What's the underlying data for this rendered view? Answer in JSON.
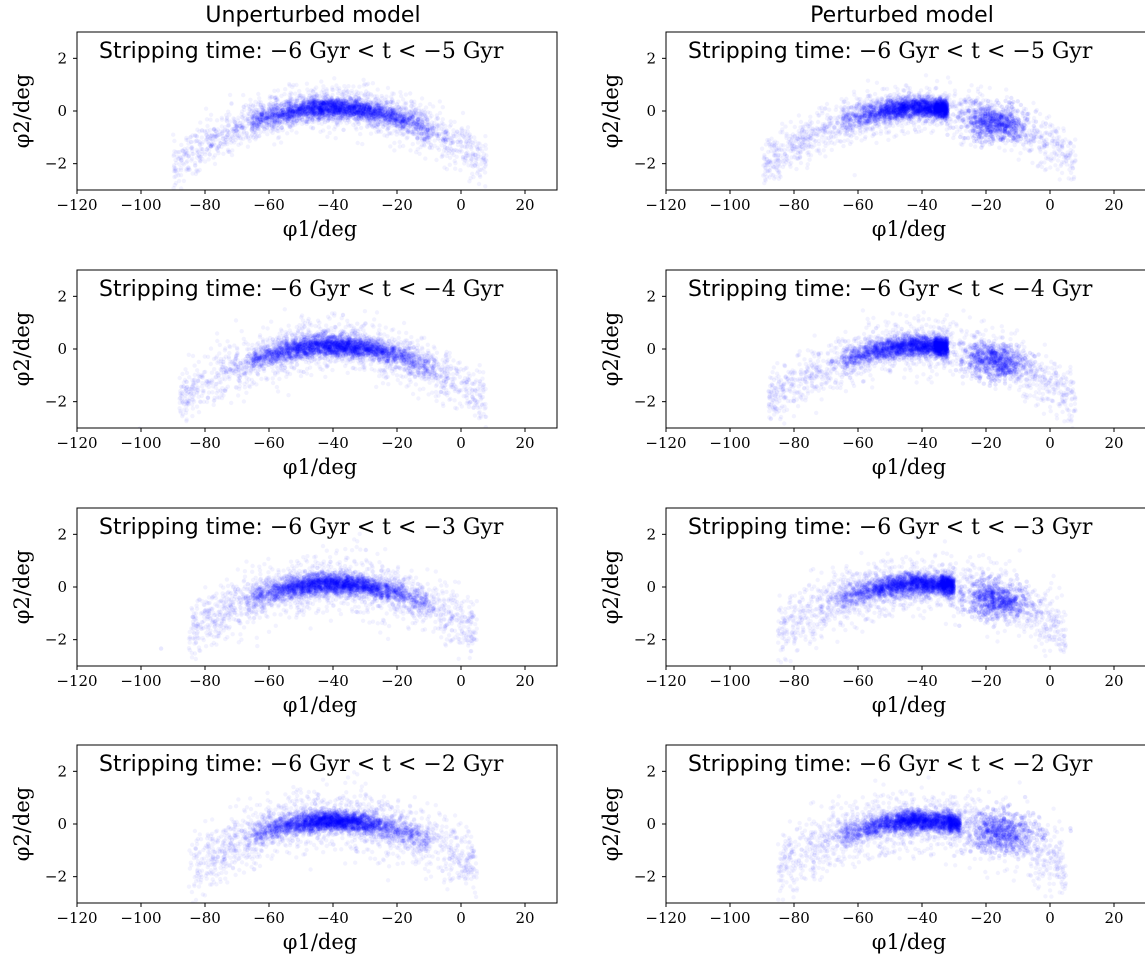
{
  "figure": {
    "column_titles": [
      "Unperturbed model",
      "Perturbed model"
    ]
  },
  "colors": {
    "points": "#0000ff",
    "frame": "#000000",
    "background": "#ffffff"
  },
  "chart_data": [
    {
      "type": "scatter",
      "column": "Unperturbed model",
      "annotation_label": "Stripping time:",
      "annotation_math": "−6 Gyr < t < −5 Gyr",
      "xlabel": "φ1/deg",
      "ylabel": "φ2/deg",
      "xlim": [
        -120,
        30
      ],
      "ylim": [
        -3,
        3
      ],
      "xticks": [
        -120,
        -100,
        -80,
        -60,
        -40,
        -20,
        0,
        20
      ],
      "yticks": [
        -2,
        0,
        2
      ],
      "grid": false,
      "stream": {
        "x_range": [
          -90,
          8
        ],
        "peak_x": -40,
        "curve_sag": 0.0009,
        "core_width": 9,
        "y_spread": 0.45
      },
      "clumps": []
    },
    {
      "type": "scatter",
      "column": "Perturbed model",
      "annotation_label": "Stripping time:",
      "annotation_math": "−6 Gyr < t < −5 Gyr",
      "xlabel": "φ1/deg",
      "ylabel": "φ2/deg",
      "xlim": [
        -120,
        30
      ],
      "ylim": [
        -3,
        3
      ],
      "xticks": [
        -120,
        -100,
        -80,
        -60,
        -40,
        -20,
        0,
        20
      ],
      "yticks": [
        -2,
        0,
        2
      ],
      "grid": false,
      "stream": {
        "x_range": [
          -90,
          8
        ],
        "peak_x": -40,
        "curve_sag": 0.0009,
        "core_width": 7,
        "y_spread": 0.45,
        "cut_x": -32
      },
      "clumps": [
        {
          "x": -17,
          "y": -0.5,
          "sx": 5,
          "sy": 0.35
        }
      ]
    },
    {
      "type": "scatter",
      "column": "Unperturbed model",
      "annotation_label": "Stripping time:",
      "annotation_math": "−6 Gyr < t < −4 Gyr",
      "xlabel": "φ1/deg",
      "ylabel": "φ2/deg",
      "xlim": [
        -120,
        30
      ],
      "ylim": [
        -3,
        3
      ],
      "xticks": [
        -120,
        -100,
        -80,
        -60,
        -40,
        -20,
        0,
        20
      ],
      "yticks": [
        -2,
        0,
        2
      ],
      "grid": false,
      "stream": {
        "x_range": [
          -88,
          8
        ],
        "peak_x": -40,
        "curve_sag": 0.0009,
        "core_width": 9,
        "y_spread": 0.5
      },
      "clumps": []
    },
    {
      "type": "scatter",
      "column": "Perturbed model",
      "annotation_label": "Stripping time:",
      "annotation_math": "−6 Gyr < t < −4 Gyr",
      "xlabel": "φ1/deg",
      "ylabel": "φ2/deg",
      "xlim": [
        -120,
        30
      ],
      "ylim": [
        -3,
        3
      ],
      "xticks": [
        -120,
        -100,
        -80,
        -60,
        -40,
        -20,
        0,
        20
      ],
      "yticks": [
        -2,
        0,
        2
      ],
      "grid": false,
      "stream": {
        "x_range": [
          -88,
          8
        ],
        "peak_x": -40,
        "curve_sag": 0.0009,
        "core_width": 8,
        "y_spread": 0.5,
        "cut_x": -32
      },
      "clumps": [
        {
          "x": -17,
          "y": -0.5,
          "sx": 5,
          "sy": 0.35
        }
      ]
    },
    {
      "type": "scatter",
      "column": "Unperturbed model",
      "annotation_label": "Stripping time:",
      "annotation_math": "−6 Gyr < t < −3 Gyr",
      "xlabel": "φ1/deg",
      "ylabel": "φ2/deg",
      "xlim": [
        -120,
        30
      ],
      "ylim": [
        -3,
        3
      ],
      "xticks": [
        -120,
        -100,
        -80,
        -60,
        -40,
        -20,
        0,
        20
      ],
      "yticks": [
        -2,
        0,
        2
      ],
      "grid": false,
      "stream": {
        "x_range": [
          -85,
          5
        ],
        "peak_x": -40,
        "curve_sag": 0.0009,
        "core_width": 8,
        "y_spread": 0.55
      },
      "clumps": []
    },
    {
      "type": "scatter",
      "column": "Perturbed model",
      "annotation_label": "Stripping time:",
      "annotation_math": "−6 Gyr < t < −3 Gyr",
      "xlabel": "φ1/deg",
      "ylabel": "φ2/deg",
      "xlim": [
        -120,
        30
      ],
      "ylim": [
        -3,
        3
      ],
      "xticks": [
        -120,
        -100,
        -80,
        -60,
        -40,
        -20,
        0,
        20
      ],
      "yticks": [
        -2,
        0,
        2
      ],
      "grid": false,
      "stream": {
        "x_range": [
          -85,
          5
        ],
        "peak_x": -40,
        "curve_sag": 0.0009,
        "core_width": 8,
        "y_spread": 0.55,
        "cut_x": -30
      },
      "clumps": [
        {
          "x": -17,
          "y": -0.5,
          "sx": 5,
          "sy": 0.35
        }
      ]
    },
    {
      "type": "scatter",
      "column": "Unperturbed model",
      "annotation_label": "Stripping time:",
      "annotation_math": "−6 Gyr < t < −2 Gyr",
      "xlabel": "φ1/deg",
      "ylabel": "φ2/deg",
      "xlim": [
        -120,
        30
      ],
      "ylim": [
        -3,
        3
      ],
      "xticks": [
        -120,
        -100,
        -80,
        -60,
        -40,
        -20,
        0,
        20
      ],
      "yticks": [
        -2,
        0,
        2
      ],
      "grid": false,
      "stream": {
        "x_range": [
          -85,
          5
        ],
        "peak_x": -40,
        "curve_sag": 0.0009,
        "core_width": 7,
        "y_spread": 0.6
      },
      "clumps": []
    },
    {
      "type": "scatter",
      "column": "Perturbed model",
      "annotation_label": "Stripping time:",
      "annotation_math": "−6 Gyr < t < −2 Gyr",
      "xlabel": "φ1/deg",
      "ylabel": "φ2/deg",
      "xlim": [
        -120,
        30
      ],
      "ylim": [
        -3,
        3
      ],
      "xticks": [
        -120,
        -100,
        -80,
        -60,
        -40,
        -20,
        0,
        20
      ],
      "yticks": [
        -2,
        0,
        2
      ],
      "grid": false,
      "stream": {
        "x_range": [
          -85,
          5
        ],
        "peak_x": -40,
        "curve_sag": 0.0009,
        "core_width": 7,
        "y_spread": 0.6,
        "cut_x": -28
      },
      "clumps": [
        {
          "x": -15,
          "y": -0.3,
          "sx": 6,
          "sy": 0.4
        }
      ]
    }
  ]
}
